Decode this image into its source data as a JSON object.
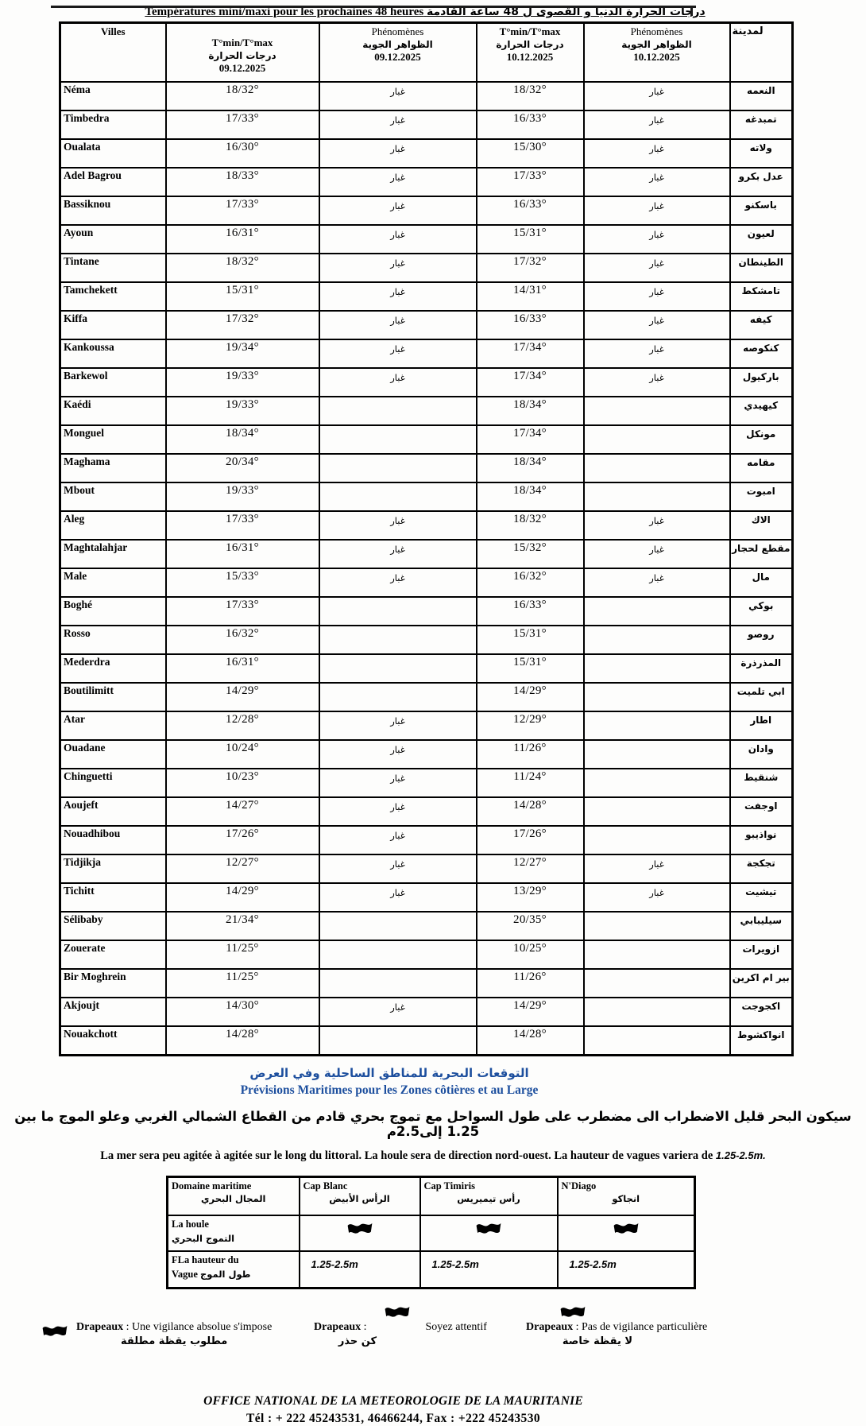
{
  "title": {
    "fr": "Températures mini/maxi pour les prochaines 48 heures",
    "ar": "درجات الحرارة الدنيا و القصوى ل 48 ساعة القادمة"
  },
  "temp_table": {
    "headers": {
      "villes": "Villes",
      "tmm": "T°min/T°max",
      "tmm_ar": "درجات الحرارة",
      "phen": "Phénomènes",
      "phen_ar": "الظواهر الجوية",
      "date1": "09.12.2025",
      "date2": "10.12.2025",
      "city_ar": "لمدينة"
    },
    "dust_label_ar": "غبار",
    "rows": [
      {
        "ville": "Néma",
        "t1": "18/32°",
        "p1": "غبار",
        "t2": "18/32°",
        "p2": "غبار",
        "ar": "النعمه"
      },
      {
        "ville": "Timbedra",
        "t1": "17/33°",
        "p1": "غبار",
        "t2": "16/33°",
        "p2": "غبار",
        "ar": "تمبدغه"
      },
      {
        "ville": "Oualata",
        "t1": "16/30°",
        "p1": "غبار",
        "t2": "15/30°",
        "p2": "غبار",
        "ar": "ولاته"
      },
      {
        "ville": "Adel Bagrou",
        "t1": "18/33°",
        "p1": "غبار",
        "t2": "17/33°",
        "p2": "غبار",
        "ar": "عدل بكرو"
      },
      {
        "ville": "Bassiknou",
        "t1": "17/33°",
        "p1": "غبار",
        "t2": "16/33°",
        "p2": "غبار",
        "ar": "باسكنو"
      },
      {
        "ville": "Ayoun",
        "t1": "16/31°",
        "p1": "غبار",
        "t2": "15/31°",
        "p2": "غبار",
        "ar": "لعيون"
      },
      {
        "ville": "Tintane",
        "t1": "18/32°",
        "p1": "غبار",
        "t2": "17/32°",
        "p2": "غبار",
        "ar": "الطينطان"
      },
      {
        "ville": "Tamchekett",
        "t1": "15/31°",
        "p1": "غبار",
        "t2": "14/31°",
        "p2": "غبار",
        "ar": "تامشكط"
      },
      {
        "ville": "Kiffa",
        "t1": "17/32°",
        "p1": "غبار",
        "t2": "16/33°",
        "p2": "غبار",
        "ar": "كيفه"
      },
      {
        "ville": "Kankoussa",
        "t1": "19/34°",
        "p1": "غبار",
        "t2": "17/34°",
        "p2": "غبار",
        "ar": "كنكوصه"
      },
      {
        "ville": "Barkewol",
        "t1": "19/33°",
        "p1": "غبار",
        "t2": "17/34°",
        "p2": "غبار",
        "ar": "باركيول"
      },
      {
        "ville": "Kaédi",
        "t1": "19/33°",
        "p1": "",
        "t2": "18/34°",
        "p2": "",
        "ar": "كيهيدي"
      },
      {
        "ville": "Monguel",
        "t1": "18/34°",
        "p1": "",
        "t2": "17/34°",
        "p2": "",
        "ar": "مونكل"
      },
      {
        "ville": "Maghama",
        "t1": "20/34°",
        "p1": "",
        "t2": "18/34°",
        "p2": "",
        "ar": "مقامه"
      },
      {
        "ville": "Mbout",
        "t1": "19/33°",
        "p1": "",
        "t2": "18/34°",
        "p2": "",
        "ar": "امبوت"
      },
      {
        "ville": "Aleg",
        "t1": "17/33°",
        "p1": "غبار",
        "t2": "18/32°",
        "p2": "غبار",
        "ar": "الاك"
      },
      {
        "ville": "Maghtalahjar",
        "t1": "16/31°",
        "p1": "غبار",
        "t2": "15/32°",
        "p2": "غبار",
        "ar": "مقطع لحجار"
      },
      {
        "ville": "Male",
        "t1": "15/33°",
        "p1": "غبار",
        "t2": "16/32°",
        "p2": "غبار",
        "ar": "مال"
      },
      {
        "ville": "Boghé",
        "t1": "17/33°",
        "p1": "",
        "t2": "16/33°",
        "p2": "",
        "ar": "بوكي"
      },
      {
        "ville": "Rosso",
        "t1": "16/32°",
        "p1": "",
        "t2": "15/31°",
        "p2": "",
        "ar": "روصو"
      },
      {
        "ville": "Mederdra",
        "t1": "16/31°",
        "p1": "",
        "t2": "15/31°",
        "p2": "",
        "ar": "المذرذرة"
      },
      {
        "ville": "Boutilimitt",
        "t1": "14/29°",
        "p1": "",
        "t2": "14/29°",
        "p2": "",
        "ar": "ابي تلميت"
      },
      {
        "ville": "Atar",
        "t1": "12/28°",
        "p1": "غبار",
        "t2": "12/29°",
        "p2": "",
        "ar": "اطار"
      },
      {
        "ville": "Ouadane",
        "t1": "10/24°",
        "p1": "غبار",
        "t2": "11/26°",
        "p2": "",
        "ar": "وادان"
      },
      {
        "ville": "Chinguetti",
        "t1": "10/23°",
        "p1": "غبار",
        "t2": "11/24°",
        "p2": "",
        "ar": "شنقيط"
      },
      {
        "ville": "Aoujeft",
        "t1": "14/27°",
        "p1": "غبار",
        "t2": "14/28°",
        "p2": "",
        "ar": "اوجفت"
      },
      {
        "ville": "Nouadhibou",
        "t1": "17/26°",
        "p1": "غبار",
        "t2": "17/26°",
        "p2": "",
        "ar": "نواذيبو"
      },
      {
        "ville": "Tidjikja",
        "t1": "12/27°",
        "p1": "غبار",
        "t2": "12/27°",
        "p2": "غبار",
        "ar": "تجكجة"
      },
      {
        "ville": "Tichitt",
        "t1": "14/29°",
        "p1": "غبار",
        "t2": "13/29°",
        "p2": "غبار",
        "ar": "تيشيت"
      },
      {
        "ville": "Sélibaby",
        "t1": "21/34°",
        "p1": "",
        "t2": "20/35°",
        "p2": "",
        "ar": "سيليبابي"
      },
      {
        "ville": "Zouerate",
        "t1": "11/25°",
        "p1": "",
        "t2": "10/25°",
        "p2": "",
        "ar": "ازويرات"
      },
      {
        "ville": "Bir Moghrein",
        "t1": "11/25°",
        "p1": "",
        "t2": "11/26°",
        "p2": "",
        "ar": "بير ام اكرين"
      },
      {
        "ville": "Akjoujt",
        "t1": "14/30°",
        "p1": "غبار",
        "t2": "14/29°",
        "p2": "",
        "ar": "اكجوجت"
      },
      {
        "ville": "Nouakchott",
        "t1": "14/28°",
        "p1": "",
        "t2": "14/28°",
        "p2": "",
        "ar": "انواكشوط"
      }
    ]
  },
  "maritime": {
    "title_ar": "التوقعات البحرية للمناطق الساحلية وفي العرض",
    "title_fr": "Prévisions Maritimes  pour les Zones côtières et au  Large",
    "text_ar": "سيكون البحر قليل الاضطراب الى مضطرب على طول السواحل مع تموج بحري قادم من القطاع الشمالي الغربي وعلو الموج ما بين 1.25 إلى2.5م",
    "text_fr": "La mer sera peu agitée à agitée sur le long du littoral. La houle sera de direction nord-ouest.  La hauteur de vagues variera de",
    "text_fr_range": "1.25-2.5m.",
    "table": {
      "headers": [
        {
          "fr": "Domaine maritime",
          "ar": "المجال البحري"
        },
        {
          "fr": "Cap Blanc",
          "ar": "الرأس الأبيض"
        },
        {
          "fr": "Cap Timiris",
          "ar": "رأس تيميريس"
        },
        {
          "fr": "N'Diago",
          "ar": "انجاكو"
        }
      ],
      "houle": {
        "fr": "La houle",
        "ar": "التموج البحري",
        "flag": "yellow-flag"
      },
      "hauteur": {
        "l1": "FLa hauteur du",
        "l2_fr": "Vague",
        "l2_ar": "طول الموج",
        "values": [
          "1.25-2.5m",
          "1.25-2.5m",
          "1.25-2.5m"
        ]
      }
    }
  },
  "legend": [
    {
      "prefix": "Drapeaux",
      "text": " : Une vigilance absolue s'impose",
      "ar": "مطلوب يقظة مطلقة",
      "flag": "red-flag"
    },
    {
      "prefix": "Drapeaux",
      "text": " :",
      "text2": "Soyez attentif",
      "ar": "كن حذر",
      "flag": "yellow-flag"
    },
    {
      "prefix": "Drapeaux",
      "text": " : Pas de vigilance particulière",
      "ar": "لا يقظة خاصة",
      "flag": "green-flag"
    }
  ],
  "footer": {
    "office": "OFFICE NATIONAL DE LA METEOROLOGIE DE LA MAURITANIE",
    "contact": "Tél : + 222 45243531, 46466244,  Fax : +222 45243530"
  },
  "colors": {
    "title_blue": "#1d4f9e",
    "flag_yellow": "#ffdd00",
    "flag_red": "#e8192c",
    "flag_green": "#27a737"
  }
}
